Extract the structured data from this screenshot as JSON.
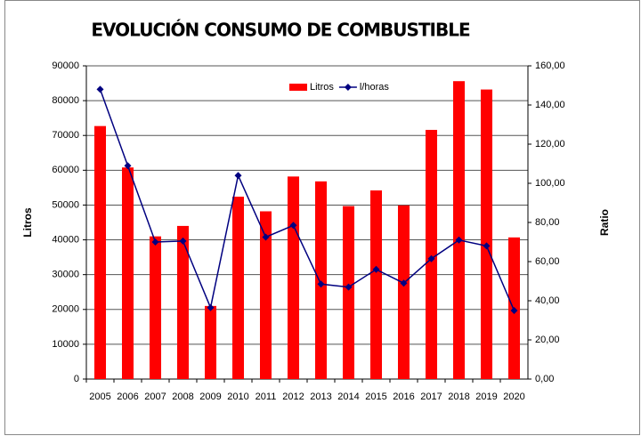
{
  "chart_data": {
    "type": "bar",
    "title": "EVOLUCIÓN CONSUMO DE COMBUSTIBLE",
    "y_label": "Litros",
    "y2_label": "Ratio",
    "categories": [
      "2005",
      "2006",
      "2007",
      "2008",
      "2009",
      "2010",
      "2011",
      "2012",
      "2013",
      "2014",
      "2015",
      "2016",
      "2017",
      "2018",
      "2019",
      "2020"
    ],
    "series": [
      {
        "name": "Litros",
        "type": "bar",
        "color": "#ff0000",
        "values": [
          72700,
          60800,
          41000,
          44000,
          21000,
          52400,
          48200,
          58200,
          56800,
          49700,
          54200,
          49900,
          71600,
          85600,
          83200,
          40700
        ]
      },
      {
        "name": "l/horas",
        "type": "line",
        "axis": "y2",
        "color": "#000080",
        "values": [
          148,
          109,
          70,
          70.5,
          36.5,
          104,
          72.5,
          78.5,
          48.5,
          47,
          56,
          49,
          61.5,
          71,
          68,
          35
        ]
      }
    ],
    "ylim": [
      0,
      90000
    ],
    "yticks": [
      0,
      10000,
      20000,
      30000,
      40000,
      50000,
      60000,
      70000,
      80000,
      90000
    ],
    "y2lim": [
      0,
      160
    ],
    "y2ticks": [
      {
        "value": 0,
        "label": "0,00"
      },
      {
        "value": 20,
        "label": "20,00"
      },
      {
        "value": 40,
        "label": "40,00"
      },
      {
        "value": 60,
        "label": "60,00"
      },
      {
        "value": 80,
        "label": "80,00"
      },
      {
        "value": 100,
        "label": "100,00"
      },
      {
        "value": 120,
        "label": "120,00"
      },
      {
        "value": 140,
        "label": "140,00"
      },
      {
        "value": 160,
        "label": "160,00"
      }
    ],
    "grid": true,
    "legend": "top"
  }
}
